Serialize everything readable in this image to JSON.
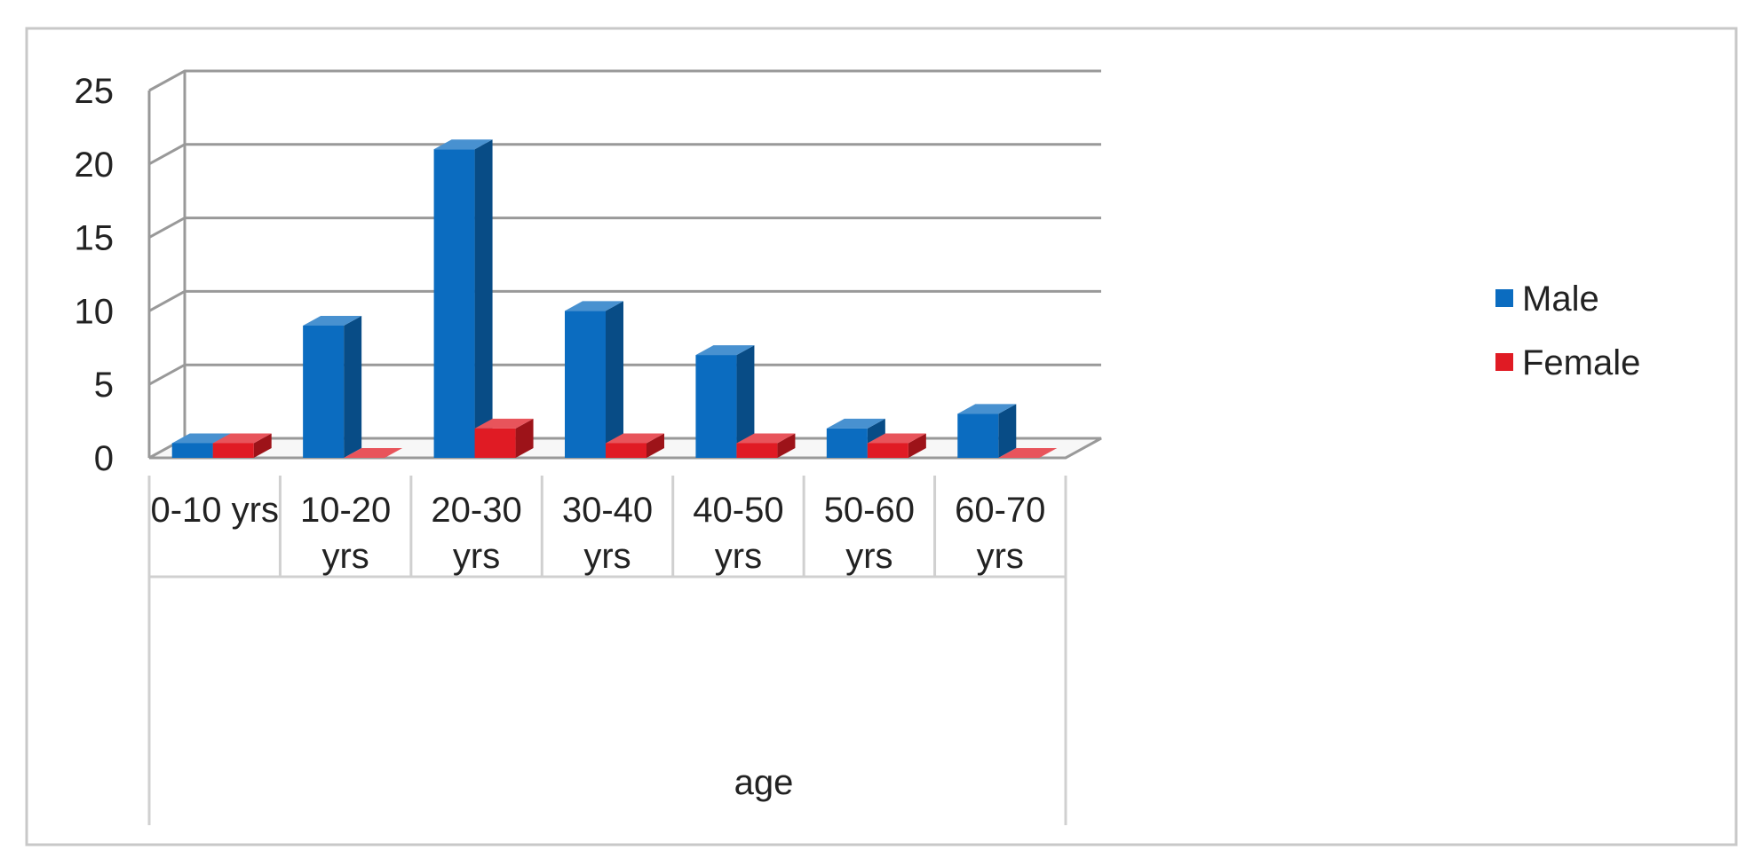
{
  "chart_data": {
    "type": "bar",
    "categories": [
      [
        "0-10 yrs"
      ],
      [
        "10-20",
        "yrs"
      ],
      [
        "20-30",
        "yrs"
      ],
      [
        "30-40",
        "yrs"
      ],
      [
        "40-50",
        "yrs"
      ],
      [
        "50-60",
        "yrs"
      ],
      [
        "60-70",
        "yrs"
      ]
    ],
    "series": [
      {
        "name": "Male",
        "values": [
          1,
          9,
          21,
          10,
          7,
          2,
          3
        ],
        "color": "#0b6cc0"
      },
      {
        "name": "Female",
        "values": [
          1,
          0,
          2,
          1,
          1,
          1,
          0
        ],
        "color": "#e01b24"
      }
    ],
    "xlabel": "age",
    "ylabel": "",
    "ylim": [
      0,
      25
    ],
    "yticks": [
      0,
      5,
      10,
      15,
      20,
      25
    ],
    "grid": true,
    "legend": "right",
    "style": "3d-column"
  }
}
